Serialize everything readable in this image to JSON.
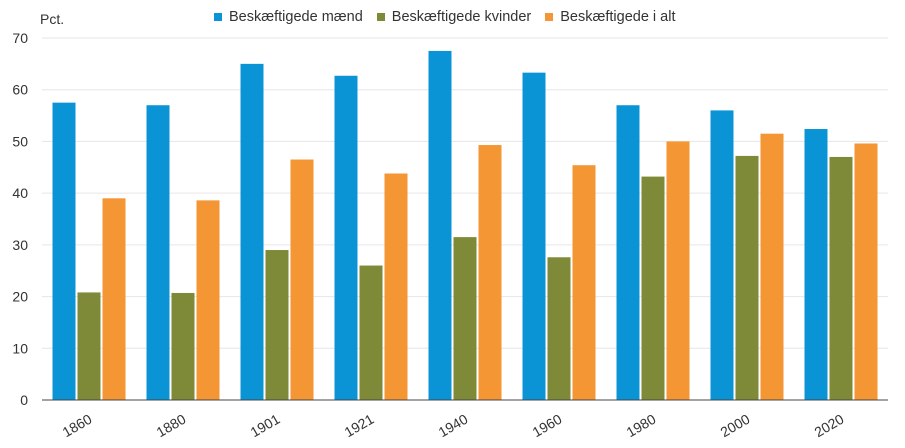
{
  "chart_data": {
    "type": "bar",
    "ylabel": "Pct.",
    "ylim": [
      0,
      70
    ],
    "yticks": [
      0,
      10,
      20,
      30,
      40,
      50,
      60,
      70
    ],
    "grid": true,
    "legend_position": "top",
    "categories": [
      "1860",
      "1880",
      "1901",
      "1921",
      "1940",
      "1960",
      "1980",
      "2000",
      "2020"
    ],
    "series": [
      {
        "name": "Beskæftigede mænd",
        "color": "#0a94d6",
        "values": [
          57.5,
          57.0,
          65.0,
          62.7,
          67.5,
          63.3,
          57.0,
          56.0,
          52.4
        ]
      },
      {
        "name": "Beskæftigede kvinder",
        "color": "#7f8a38",
        "values": [
          20.8,
          20.7,
          29.0,
          26.0,
          31.5,
          27.6,
          43.2,
          47.2,
          47.0
        ]
      },
      {
        "name": "Beskæftigede i alt",
        "color": "#f39633",
        "values": [
          39.0,
          38.6,
          46.5,
          43.8,
          49.3,
          45.4,
          50.0,
          51.5,
          49.6
        ]
      }
    ]
  }
}
